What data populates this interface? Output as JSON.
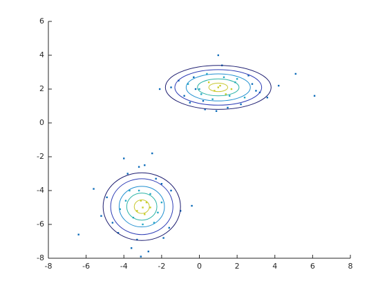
{
  "chart_data": {
    "type": "scatter",
    "xlim": [
      -8,
      8
    ],
    "xticks": [
      -8,
      -6,
      -4,
      -2,
      0,
      2,
      4,
      6,
      8
    ],
    "ylim": [
      -8,
      6
    ],
    "yticks": [
      -8,
      -6,
      -4,
      -2,
      0,
      2,
      4,
      6
    ],
    "series": [
      {
        "color": "#0a6ab9",
        "x": [
          -2.1,
          -1.5,
          -1.1,
          -0.8,
          -0.5,
          -0.3,
          0.2,
          0.3,
          0.9,
          1.2,
          1.5,
          2.2,
          2.6,
          3.0,
          3.2,
          3.6,
          4.2,
          5.1,
          6.1,
          1.0,
          -0.2,
          2.8,
          -6.4,
          -5.6,
          -5.2,
          -4.9,
          -4.3,
          -4.0,
          -3.6,
          -3.2,
          -2.7,
          -2.3,
          -1.9,
          -1.5,
          -1.0,
          -0.4,
          -2.5,
          -3.8,
          -3.1,
          -2.9,
          -4.6,
          -1.6,
          -3.3,
          -2.0
        ],
        "y": [
          2.0,
          2.1,
          2.5,
          1.6,
          1.2,
          2.7,
          1.3,
          0.8,
          0.7,
          3.4,
          0.9,
          1.1,
          2.8,
          1.9,
          1.8,
          1.5,
          2.2,
          2.9,
          1.6,
          4.0,
          2.0,
          2.3,
          -6.6,
          -3.9,
          -5.5,
          -4.4,
          -6.5,
          -2.1,
          -7.4,
          -2.6,
          -7.6,
          -3.3,
          -6.8,
          -4.0,
          -5.2,
          -4.9,
          -1.8,
          -3.0,
          -7.9,
          -2.5,
          -5.9,
          -6.2,
          -6.9,
          -3.6
        ]
      },
      {
        "color": "#21a6c4",
        "x": [
          0.0,
          0.4,
          0.7,
          1.6,
          1.9,
          2.4,
          -0.6,
          1.3,
          2.0,
          0.1,
          -3.9,
          -3.5,
          -2.6,
          -2.2,
          -3.0,
          -3.7,
          -2.4,
          -3.2,
          -4.2,
          -2.0
        ],
        "y": [
          2.0,
          2.9,
          1.4,
          1.6,
          2.4,
          1.5,
          2.3,
          2.7,
          2.6,
          1.7,
          -4.6,
          -5.6,
          -4.2,
          -5.3,
          -6.0,
          -4.0,
          -5.9,
          -4.0,
          -5.1,
          -4.7
        ]
      },
      {
        "color": "#c9cf2a",
        "x": [
          0.8,
          1.1,
          1.4,
          0.5,
          1.7,
          1.0,
          -3.0,
          -2.8,
          -3.3,
          -2.9,
          -3.1,
          -2.6
        ],
        "y": [
          1.9,
          2.2,
          1.7,
          2.4,
          2.0,
          2.1,
          -5.0,
          -4.7,
          -5.2,
          -5.4,
          -4.6,
          -5.0
        ]
      }
    ],
    "contours": [
      {
        "center": [
          1,
          2.1
        ],
        "radii": [
          2.8,
          1.3
        ],
        "color": "#1a1a6e"
      },
      {
        "center": [
          1,
          2.1
        ],
        "radii": [
          2.3,
          1.05
        ],
        "color": "#2c3bb5"
      },
      {
        "center": [
          1,
          2.1
        ],
        "radii": [
          1.7,
          0.8
        ],
        "color": "#1e8fd0"
      },
      {
        "center": [
          1,
          2.1
        ],
        "radii": [
          1.1,
          0.5
        ],
        "color": "#29b3a6"
      },
      {
        "center": [
          1,
          2.1
        ],
        "radii": [
          0.5,
          0.25
        ],
        "color": "#c8c830"
      },
      {
        "center": [
          -3.05,
          -4.95
        ],
        "radii": [
          2.05,
          2.0
        ],
        "color": "#1a1a6e"
      },
      {
        "center": [
          -3.05,
          -4.95
        ],
        "radii": [
          1.65,
          1.65
        ],
        "color": "#2c3bb5"
      },
      {
        "center": [
          -3.05,
          -4.95
        ],
        "radii": [
          1.2,
          1.2
        ],
        "color": "#1e8fd0"
      },
      {
        "center": [
          -3.05,
          -4.95
        ],
        "radii": [
          0.8,
          0.8
        ],
        "color": "#29b3a6"
      },
      {
        "center": [
          -3.05,
          -4.95
        ],
        "radii": [
          0.4,
          0.4
        ],
        "color": "#c8c830"
      }
    ]
  }
}
